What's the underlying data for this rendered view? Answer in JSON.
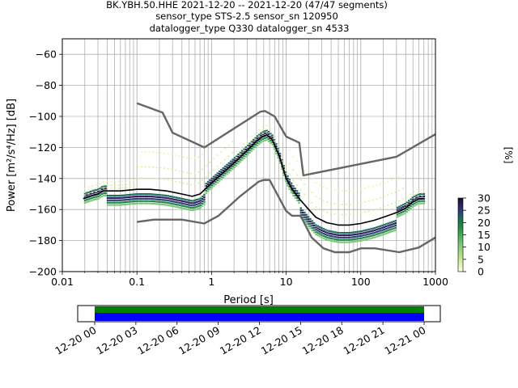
{
  "title_lines": [
    "BK.YBH.50.HHE   2021-12-20 -- 2021-12-20  (47/47 segments)",
    "sensor_type STS-2.5 sensor_sn 120950",
    "datalogger_type Q330 datalogger_sn 4533"
  ],
  "chart_data": [
    {
      "type": "heatmap",
      "title": "",
      "xlabel": "Period [s]",
      "ylabel": "Power [m²/s⁴/Hz] [dB]",
      "x_scale": "log",
      "xlim": [
        0.01,
        1000
      ],
      "ylim": [
        -200,
        -50
      ],
      "x_ticks": [
        0.01,
        0.1,
        1,
        10,
        100,
        1000
      ],
      "x_tick_labels": [
        "0.01",
        "0.1",
        "1",
        "10",
        "100",
        "1000"
      ],
      "y_ticks": [
        -200,
        -180,
        -160,
        -140,
        -120,
        -100,
        -80,
        -60
      ],
      "y_tick_labels": [
        "−200",
        "−180",
        "−160",
        "−140",
        "−120",
        "−100",
        "−80",
        "−60"
      ],
      "grid": true,
      "colorbar": {
        "label": "[%]",
        "range": [
          0,
          30
        ],
        "ticks": [
          0,
          5,
          10,
          15,
          20,
          25,
          30
        ],
        "colormap": [
          "#ffffe5",
          "#d9f0a3",
          "#78c679",
          "#41ab5d",
          "#238443",
          "#1d6d5a",
          "#2c3e7a",
          "#2d1e5a",
          "#1a0a3a"
        ]
      },
      "series": [
        {
          "x": [
            0.1,
            0.22,
            0.3,
            0.8,
            4.5,
            5.2,
            7,
            10,
            15,
            17,
            300,
            1000
          ],
          "y": [
            -91.5,
            -97.5,
            -110.5,
            -120,
            -97,
            -96.5,
            -100,
            -113,
            -117,
            -138,
            -126,
            -111.5
          ],
          "style": "high noise model"
        },
        {
          "x": [
            0.1,
            0.17,
            0.4,
            0.8,
            1.24,
            2.4,
            4.3,
            5,
            6,
            10,
            12,
            15.6,
            21.9,
            31.6,
            45,
            70,
            101,
            154,
            328,
            600,
            1000
          ],
          "y": [
            -168,
            -166.5,
            -166.5,
            -169,
            -164,
            -151.5,
            -142,
            -141,
            -141,
            -161,
            -164,
            -164,
            -178,
            -185,
            -187.5,
            -187.5,
            -185,
            -185,
            -187.5,
            -184.5,
            -178
          ]
        },
        {
          "x": [
            0.019,
            0.025,
            0.03,
            0.035,
            0.06,
            0.1,
            0.15,
            0.25,
            0.4,
            0.55,
            0.7,
            0.9,
            1.3,
            2,
            3,
            4,
            4.8,
            5.5,
            6.5,
            8,
            10,
            12,
            15,
            20,
            25,
            35,
            50,
            70,
            100,
            150,
            200,
            300,
            400,
            500,
            600,
            700
          ],
          "y": [
            -153,
            -151,
            -150,
            -148,
            -148,
            -147,
            -147,
            -148,
            -150,
            -151.5,
            -150,
            -145,
            -138,
            -130,
            -122,
            -116,
            -113,
            -112,
            -115,
            -125,
            -140,
            -147,
            -153,
            -160,
            -165,
            -168.5,
            -170,
            -170,
            -169,
            -167,
            -165,
            -162,
            -159,
            -155,
            -153,
            -153
          ]
        }
      ]
    },
    {
      "type": "bar",
      "title": "",
      "x_tick_labels": [
        "12-20 00",
        "12-20 03",
        "12-20 06",
        "12-20 09",
        "12-20 12",
        "12-20 15",
        "12-20 18",
        "12-20 21",
        "12-21 00"
      ],
      "series": [
        {
          "name": "",
          "color": "#008000",
          "range": [
            "12-20 00",
            "12-21 00"
          ]
        },
        {
          "name": "",
          "color": "#0000ff",
          "range": [
            "12-20 00",
            "12-21 00"
          ]
        }
      ]
    }
  ]
}
